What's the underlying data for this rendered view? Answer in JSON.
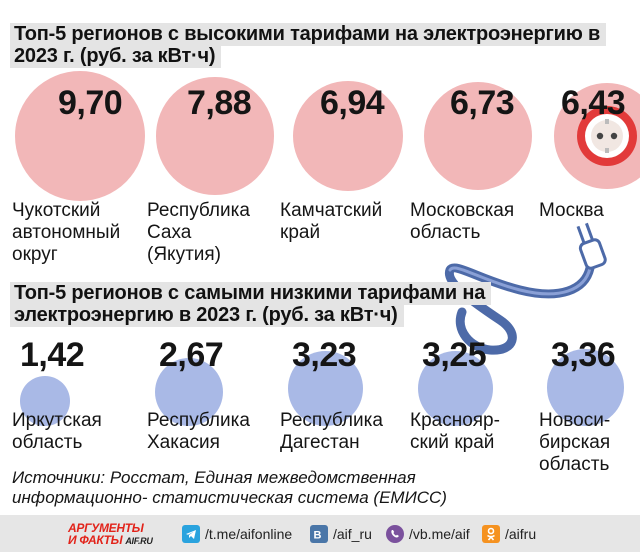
{
  "title_top": "Топ-5 регионов с высокими тарифами на электроэнергию в 2023 г. (руб. за кВт·ч)",
  "title_bottom": "Топ-5 регионов с самыми низкими тарифами на электроэнергию в 2023 г. (руб. за кВт·ч)",
  "chart_data": [
    {
      "type": "bubble",
      "title": "Топ-5 регионов с высокими тарифами на электроэнергию в 2023 г. (руб. за кВт·ч)",
      "categories": [
        "Чукотский\nавтономный\nокруг",
        "Республика\nСаха\n(Якутия)",
        "Камчатский\nкрай",
        "Московская\nобласть",
        "Москва"
      ],
      "values": [
        9.7,
        7.88,
        6.94,
        6.73,
        6.43
      ],
      "labels": [
        "9,70",
        "7,88",
        "6,94",
        "6,73",
        "6,43"
      ],
      "color": "#f2b7b8"
    },
    {
      "type": "bubble",
      "title": "Топ-5 регионов с самыми низкими тарифами на электроэнергию в 2023 г. (руб. за кВт·ч)",
      "categories": [
        "Иркутская\nобласть",
        "Республика\nХакасия",
        "Республика\nДагестан",
        "Краснояр-\nский край",
        "Новоси-\nбирская\nобласть"
      ],
      "values": [
        1.42,
        2.67,
        3.23,
        3.25,
        3.36
      ],
      "labels": [
        "1,42",
        "2,67",
        "3,23",
        "3,25",
        "3,36"
      ],
      "color": "#a9b9e6"
    }
  ],
  "sources": "Источники: Росстат, Единая межведомственная информационно- статистическая система (ЕМИСС)",
  "footer": {
    "logo_line1": "АРГУМЕНТЫ",
    "logo_line2": "И ФАКТЫ",
    "logo_site": "AIF.RU",
    "links": [
      {
        "icon": "telegram-icon",
        "text": "/t.me/aifonline"
      },
      {
        "icon": "vk-icon",
        "text": "/aif_ru"
      },
      {
        "icon": "viber-icon",
        "text": "/vb.me/aif"
      },
      {
        "icon": "odnoklassniki-icon",
        "text": "/aifru"
      }
    ]
  }
}
